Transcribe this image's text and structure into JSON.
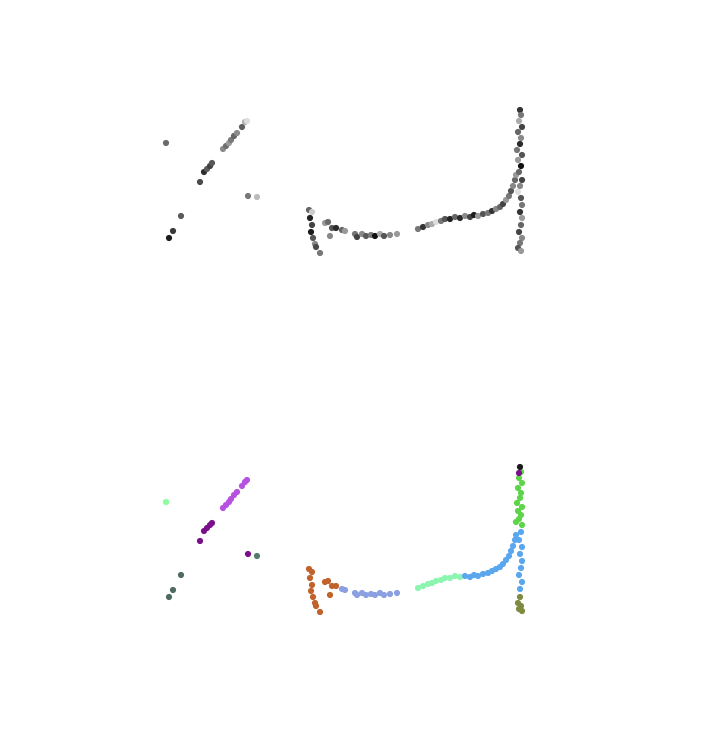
{
  "chart_data": [
    {
      "type": "scatter",
      "panel": "top",
      "grid": false,
      "axes_visible": false,
      "x_range": [
        0,
        700
      ],
      "y_range": [
        0,
        360
      ],
      "series": [
        {
          "color": "grayscale",
          "points": [
            {
              "x": 166,
              "y": 143,
              "c": "#6a6a6a"
            },
            {
              "x": 169,
              "y": 238,
              "c": "#1c1c1c"
            },
            {
              "x": 173,
              "y": 231,
              "c": "#3a3a3a"
            },
            {
              "x": 181,
              "y": 216,
              "c": "#5a5a5a"
            },
            {
              "x": 200,
              "y": 182,
              "c": "#4a4a4a"
            },
            {
              "x": 204,
              "y": 172,
              "c": "#2e2e2e"
            },
            {
              "x": 207,
              "y": 169,
              "c": "#5c5c5c"
            },
            {
              "x": 210,
              "y": 166,
              "c": "#404040"
            },
            {
              "x": 212,
              "y": 163,
              "c": "#575757"
            },
            {
              "x": 223,
              "y": 149,
              "c": "#8a8a8a"
            },
            {
              "x": 226,
              "y": 146,
              "c": "#6e6e6e"
            },
            {
              "x": 229,
              "y": 143,
              "c": "#9a9a9a"
            },
            {
              "x": 231,
              "y": 140,
              "c": "#7a7a7a"
            },
            {
              "x": 234,
              "y": 136,
              "c": "#666666"
            },
            {
              "x": 237,
              "y": 133,
              "c": "#8c8c8c"
            },
            {
              "x": 242,
              "y": 127,
              "c": "#5f5f5f"
            },
            {
              "x": 245,
              "y": 122,
              "c": "#b0b0b0"
            },
            {
              "x": 247,
              "y": 121,
              "c": "#dddddd"
            },
            {
              "x": 248,
              "y": 196,
              "c": "#777777"
            },
            {
              "x": 257,
              "y": 197,
              "c": "#bbbbbb"
            },
            {
              "x": 309,
              "y": 210,
              "c": "#666666"
            },
            {
              "x": 312,
              "y": 212,
              "c": "#cccccc"
            },
            {
              "x": 310,
              "y": 218,
              "c": "#222222"
            },
            {
              "x": 312,
              "y": 225,
              "c": "#444444"
            },
            {
              "x": 311,
              "y": 232,
              "c": "#1a1a1a"
            },
            {
              "x": 313,
              "y": 238,
              "c": "#555555"
            },
            {
              "x": 315,
              "y": 244,
              "c": "#888888"
            },
            {
              "x": 316,
              "y": 247,
              "c": "#4a4a4a"
            },
            {
              "x": 320,
              "y": 253,
              "c": "#777777"
            },
            {
              "x": 325,
              "y": 223,
              "c": "#999999"
            },
            {
              "x": 328,
              "y": 222,
              "c": "#6a6a6a"
            },
            {
              "x": 332,
              "y": 228,
              "c": "#555555"
            },
            {
              "x": 330,
              "y": 236,
              "c": "#888888"
            },
            {
              "x": 336,
              "y": 228,
              "c": "#2a2a2a"
            },
            {
              "x": 342,
              "y": 230,
              "c": "#666666"
            },
            {
              "x": 345,
              "y": 231,
              "c": "#9a9a9a"
            },
            {
              "x": 355,
              "y": 234,
              "c": "#777777"
            },
            {
              "x": 357,
              "y": 237,
              "c": "#444444"
            },
            {
              "x": 362,
              "y": 234,
              "c": "#8a8a8a"
            },
            {
              "x": 366,
              "y": 236,
              "c": "#5a5a5a"
            },
            {
              "x": 371,
              "y": 235,
              "c": "#7a7a7a"
            },
            {
              "x": 375,
              "y": 236,
              "c": "#111111"
            },
            {
              "x": 380,
              "y": 234,
              "c": "#aaaaaa"
            },
            {
              "x": 384,
              "y": 236,
              "c": "#555555"
            },
            {
              "x": 390,
              "y": 235,
              "c": "#888888"
            },
            {
              "x": 397,
              "y": 234,
              "c": "#999999"
            },
            {
              "x": 418,
              "y": 229,
              "c": "#777777"
            },
            {
              "x": 423,
              "y": 227,
              "c": "#333333"
            },
            {
              "x": 428,
              "y": 225,
              "c": "#888888"
            },
            {
              "x": 432,
              "y": 224,
              "c": "#aaaaaa"
            },
            {
              "x": 436,
              "y": 222,
              "c": "#dddddd"
            },
            {
              "x": 441,
              "y": 221,
              "c": "#777777"
            },
            {
              "x": 445,
              "y": 219,
              "c": "#555555"
            },
            {
              "x": 450,
              "y": 219,
              "c": "#222222"
            },
            {
              "x": 455,
              "y": 217,
              "c": "#666666"
            },
            {
              "x": 460,
              "y": 218,
              "c": "#2a2a2a"
            },
            {
              "x": 465,
              "y": 216,
              "c": "#8a8a8a"
            },
            {
              "x": 470,
              "y": 217,
              "c": "#444444"
            },
            {
              "x": 474,
              "y": 215,
              "c": "#1c1c1c"
            },
            {
              "x": 478,
              "y": 216,
              "c": "#999999"
            },
            {
              "x": 483,
              "y": 214,
              "c": "#555555"
            },
            {
              "x": 488,
              "y": 213,
              "c": "#777777"
            },
            {
              "x": 492,
              "y": 211,
              "c": "#333333"
            },
            {
              "x": 496,
              "y": 209,
              "c": "#888888"
            },
            {
              "x": 500,
              "y": 207,
              "c": "#666666"
            },
            {
              "x": 503,
              "y": 204,
              "c": "#444444"
            },
            {
              "x": 506,
              "y": 200,
              "c": "#999999"
            },
            {
              "x": 509,
              "y": 196,
              "c": "#777777"
            },
            {
              "x": 511,
              "y": 191,
              "c": "#555555"
            },
            {
              "x": 513,
              "y": 186,
              "c": "#888888"
            },
            {
              "x": 515,
              "y": 180,
              "c": "#666666"
            },
            {
              "x": 516,
              "y": 175,
              "c": "#999999"
            },
            {
              "x": 520,
              "y": 110,
              "c": "#333333"
            },
            {
              "x": 521,
              "y": 115,
              "c": "#777777"
            },
            {
              "x": 519,
              "y": 121,
              "c": "#aaaaaa"
            },
            {
              "x": 522,
              "y": 127,
              "c": "#444444"
            },
            {
              "x": 518,
              "y": 132,
              "c": "#666666"
            },
            {
              "x": 521,
              "y": 138,
              "c": "#888888"
            },
            {
              "x": 520,
              "y": 144,
              "c": "#2a2a2a"
            },
            {
              "x": 517,
              "y": 150,
              "c": "#777777"
            },
            {
              "x": 522,
              "y": 155,
              "c": "#555555"
            },
            {
              "x": 518,
              "y": 160,
              "c": "#999999"
            },
            {
              "x": 521,
              "y": 166,
              "c": "#111111"
            },
            {
              "x": 519,
              "y": 172,
              "c": "#666666"
            },
            {
              "x": 522,
              "y": 180,
              "c": "#444444"
            },
            {
              "x": 520,
              "y": 186,
              "c": "#888888"
            },
            {
              "x": 518,
              "y": 192,
              "c": "#dddddd"
            },
            {
              "x": 521,
              "y": 198,
              "c": "#555555"
            },
            {
              "x": 522,
              "y": 205,
              "c": "#777777"
            },
            {
              "x": 520,
              "y": 212,
              "c": "#333333"
            },
            {
              "x": 522,
              "y": 218,
              "c": "#999999"
            },
            {
              "x": 521,
              "y": 225,
              "c": "#666666"
            },
            {
              "x": 519,
              "y": 232,
              "c": "#444444"
            },
            {
              "x": 522,
              "y": 238,
              "c": "#888888"
            },
            {
              "x": 520,
              "y": 243,
              "c": "#777777"
            },
            {
              "x": 518,
              "y": 248,
              "c": "#555555"
            },
            {
              "x": 521,
              "y": 251,
              "c": "#999999"
            }
          ]
        }
      ]
    },
    {
      "type": "scatter",
      "panel": "bottom",
      "grid": false,
      "axes_visible": false,
      "x_range": [
        0,
        700
      ],
      "y_range": [
        360,
        720
      ],
      "series": [
        {
          "color": "#8cff9c",
          "points": [
            {
              "x": 166,
              "y": 502
            }
          ]
        },
        {
          "color": "#4f6b5f",
          "points": [
            {
              "x": 169,
              "y": 597
            },
            {
              "x": 173,
              "y": 590
            },
            {
              "x": 181,
              "y": 575
            }
          ]
        },
        {
          "color": "#7a0f8a",
          "points": [
            {
              "x": 200,
              "y": 541
            },
            {
              "x": 204,
              "y": 531
            },
            {
              "x": 207,
              "y": 528
            },
            {
              "x": 210,
              "y": 525
            },
            {
              "x": 212,
              "y": 523
            },
            {
              "x": 248,
              "y": 554
            }
          ]
        },
        {
          "color": "#b552e0",
          "points": [
            {
              "x": 223,
              "y": 508
            },
            {
              "x": 226,
              "y": 505
            },
            {
              "x": 229,
              "y": 502
            },
            {
              "x": 231,
              "y": 499
            },
            {
              "x": 234,
              "y": 495
            },
            {
              "x": 237,
              "y": 492
            },
            {
              "x": 242,
              "y": 486
            },
            {
              "x": 245,
              "y": 482
            },
            {
              "x": 247,
              "y": 480
            }
          ]
        },
        {
          "color": "#557a6a",
          "points": [
            {
              "x": 257,
              "y": 556
            }
          ]
        },
        {
          "color": "#c0622a",
          "points": [
            {
              "x": 309,
              "y": 569
            },
            {
              "x": 312,
              "y": 572
            },
            {
              "x": 310,
              "y": 578
            },
            {
              "x": 312,
              "y": 585
            },
            {
              "x": 311,
              "y": 591
            },
            {
              "x": 313,
              "y": 597
            },
            {
              "x": 315,
              "y": 603
            },
            {
              "x": 316,
              "y": 606
            },
            {
              "x": 320,
              "y": 612
            },
            {
              "x": 325,
              "y": 582
            },
            {
              "x": 328,
              "y": 581
            },
            {
              "x": 332,
              "y": 586
            },
            {
              "x": 330,
              "y": 595
            },
            {
              "x": 336,
              "y": 586
            }
          ]
        },
        {
          "color": "#8aa0e0",
          "points": [
            {
              "x": 342,
              "y": 589
            },
            {
              "x": 345,
              "y": 590
            },
            {
              "x": 355,
              "y": 593
            },
            {
              "x": 357,
              "y": 595
            },
            {
              "x": 362,
              "y": 593
            },
            {
              "x": 366,
              "y": 595
            },
            {
              "x": 371,
              "y": 594
            },
            {
              "x": 375,
              "y": 595
            },
            {
              "x": 380,
              "y": 593
            },
            {
              "x": 384,
              "y": 595
            },
            {
              "x": 390,
              "y": 594
            },
            {
              "x": 397,
              "y": 593
            }
          ]
        },
        {
          "color": "#8cf5b0",
          "points": [
            {
              "x": 418,
              "y": 588
            },
            {
              "x": 423,
              "y": 586
            },
            {
              "x": 428,
              "y": 584
            },
            {
              "x": 432,
              "y": 583
            },
            {
              "x": 436,
              "y": 581
            },
            {
              "x": 441,
              "y": 580
            },
            {
              "x": 445,
              "y": 578
            },
            {
              "x": 450,
              "y": 578
            },
            {
              "x": 455,
              "y": 576
            },
            {
              "x": 460,
              "y": 577
            }
          ]
        },
        {
          "color": "#5aa7ee",
          "points": [
            {
              "x": 465,
              "y": 576
            },
            {
              "x": 470,
              "y": 577
            },
            {
              "x": 474,
              "y": 575
            },
            {
              "x": 478,
              "y": 576
            },
            {
              "x": 483,
              "y": 574
            },
            {
              "x": 488,
              "y": 573
            },
            {
              "x": 492,
              "y": 571
            },
            {
              "x": 496,
              "y": 569
            },
            {
              "x": 500,
              "y": 567
            },
            {
              "x": 503,
              "y": 564
            },
            {
              "x": 506,
              "y": 560
            },
            {
              "x": 509,
              "y": 556
            },
            {
              "x": 511,
              "y": 551
            },
            {
              "x": 513,
              "y": 546
            },
            {
              "x": 515,
              "y": 540
            },
            {
              "x": 516,
              "y": 535
            },
            {
              "x": 521,
              "y": 532
            },
            {
              "x": 519,
              "y": 540
            },
            {
              "x": 522,
              "y": 547
            },
            {
              "x": 520,
              "y": 554
            },
            {
              "x": 522,
              "y": 561
            },
            {
              "x": 521,
              "y": 568
            },
            {
              "x": 519,
              "y": 575
            },
            {
              "x": 522,
              "y": 582
            },
            {
              "x": 520,
              "y": 589
            }
          ]
        },
        {
          "color": "#5ed44a",
          "points": [
            {
              "x": 521,
              "y": 472
            },
            {
              "x": 519,
              "y": 478
            },
            {
              "x": 522,
              "y": 483
            },
            {
              "x": 518,
              "y": 488
            },
            {
              "x": 521,
              "y": 493
            },
            {
              "x": 520,
              "y": 498
            },
            {
              "x": 517,
              "y": 503
            },
            {
              "x": 522,
              "y": 507
            },
            {
              "x": 518,
              "y": 511
            },
            {
              "x": 521,
              "y": 515
            },
            {
              "x": 519,
              "y": 519
            },
            {
              "x": 516,
              "y": 522
            },
            {
              "x": 522,
              "y": 525
            }
          ]
        },
        {
          "color": "#7a0f8a",
          "points": [
            {
              "x": 519,
              "y": 473
            }
          ]
        },
        {
          "color": "#1a1a1a",
          "points": [
            {
              "x": 520,
              "y": 467
            }
          ]
        },
        {
          "color": "#7f8a40",
          "points": [
            {
              "x": 520,
              "y": 597
            },
            {
              "x": 518,
              "y": 603
            },
            {
              "x": 521,
              "y": 606
            },
            {
              "x": 519,
              "y": 609
            },
            {
              "x": 522,
              "y": 611
            }
          ]
        }
      ]
    }
  ]
}
